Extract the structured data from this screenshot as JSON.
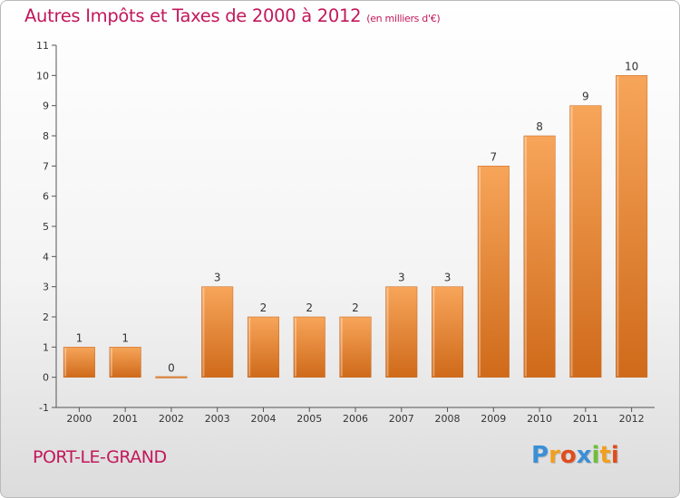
{
  "chart_data": {
    "type": "bar",
    "title": "Autres Impôts et Taxes de 2000 à 2012",
    "subtitle": "(en milliers d'€)",
    "categories": [
      "2000",
      "2001",
      "2002",
      "2003",
      "2004",
      "2005",
      "2006",
      "2007",
      "2008",
      "2009",
      "2010",
      "2011",
      "2012"
    ],
    "values": [
      1,
      1,
      0,
      3,
      2,
      2,
      2,
      3,
      3,
      7,
      8,
      9,
      10
    ],
    "ylim": [
      -1,
      11
    ],
    "yticks": [
      -1,
      0,
      1,
      2,
      3,
      4,
      5,
      6,
      7,
      8,
      9,
      10,
      11
    ],
    "grid": false,
    "bar_color": "#f39c45"
  },
  "footer": {
    "place": "PORT-LE-GRAND",
    "brand_letters": [
      "P",
      "r",
      "o",
      "x",
      "i",
      "t",
      "i"
    ],
    "brand_colors": [
      "#3b8fd6",
      "#f0a020",
      "#e04d1d",
      "#3b8fd6",
      "#6fbf3a",
      "#f0a020",
      "#e04d1d"
    ]
  }
}
